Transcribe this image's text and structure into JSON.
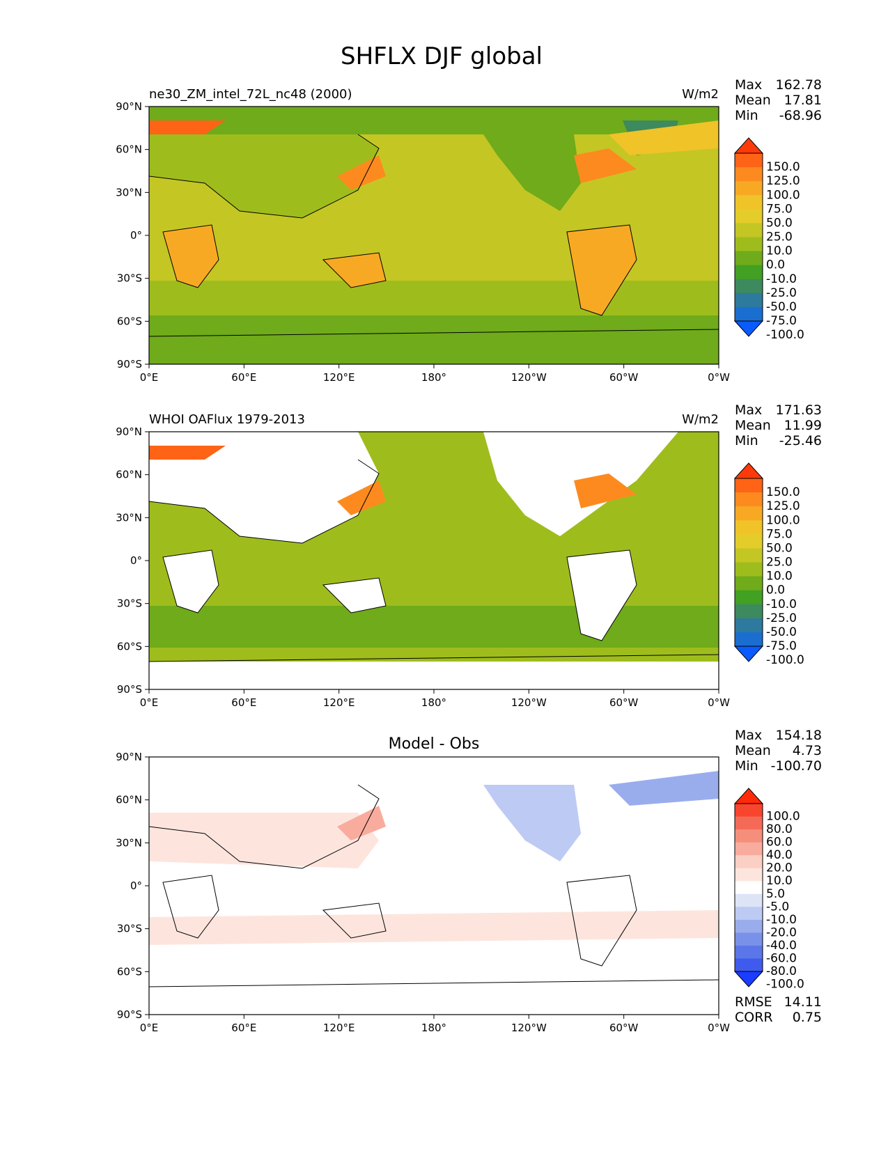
{
  "figure": {
    "title": "SHFLX DJF global"
  },
  "axes": {
    "x_ticks": [
      "0°E",
      "60°E",
      "120°E",
      "180°",
      "120°W",
      "60°W",
      "0°W"
    ],
    "y_ticks": [
      "90°N",
      "60°N",
      "30°N",
      "0°",
      "30°S",
      "60°S",
      "90°S"
    ]
  },
  "scales": {
    "flux": {
      "labels": [
        "150.0",
        "125.0",
        "100.0",
        "75.0",
        "50.0",
        "25.0",
        "10.0",
        "0.0",
        "-10.0",
        "-25.0",
        "-50.0",
        "-75.0",
        "-100.0"
      ],
      "colors": [
        "#ff3a0a",
        "#fe6316",
        "#fd8a1f",
        "#f8a924",
        "#f0c328",
        "#e4cd2a",
        "#c4c624",
        "#9ebd1c",
        "#6fab1a",
        "#42a022",
        "#3c8a5e",
        "#2d7a9e",
        "#1a6ed0",
        "#0a5bff"
      ]
    },
    "diff": {
      "labels": [
        "100.0",
        "80.0",
        "60.0",
        "40.0",
        "20.0",
        "10.0",
        "5.0",
        "-5.0",
        "-10.0",
        "-20.0",
        "-40.0",
        "-60.0",
        "-80.0",
        "-100.0"
      ],
      "colors": [
        "#ff2a0a",
        "#f9452d",
        "#f46a57",
        "#f68e7c",
        "#f9ac9e",
        "#fbcfc4",
        "#fde5de",
        "#ffffff",
        "#dde4f6",
        "#bdcaf3",
        "#99aded",
        "#7a91e9",
        "#5b76e8",
        "#3f5bee",
        "#1a3dff"
      ]
    }
  },
  "panels": [
    {
      "id": "model",
      "left_title": "ne30_ZM_intel_72L_nc48 (2000)",
      "center_title": "",
      "units": "W/m2",
      "stats": {
        "max_label": "Max",
        "max": "162.78",
        "mean_label": "Mean",
        "mean": "17.81",
        "min_label": "Min",
        "min": "-68.96"
      },
      "scale": "flux"
    },
    {
      "id": "obs",
      "left_title": "WHOI OAFlux 1979-2013",
      "center_title": "",
      "units": "W/m2",
      "stats": {
        "max_label": "Max",
        "max": "171.63",
        "mean_label": "Mean",
        "mean": "11.99",
        "min_label": "Min",
        "min": "-25.46"
      },
      "scale": "flux"
    },
    {
      "id": "diff",
      "left_title": "",
      "center_title": "Model - Obs",
      "units": "",
      "stats": {
        "max_label": "Max",
        "max": "154.18",
        "mean_label": "Mean",
        "mean": "4.73",
        "min_label": "Min",
        "min": "-100.70"
      },
      "scale": "diff",
      "metrics": {
        "rmse_label": "RMSE",
        "rmse": "14.11",
        "corr_label": "CORR",
        "corr": "0.75"
      }
    }
  ]
}
